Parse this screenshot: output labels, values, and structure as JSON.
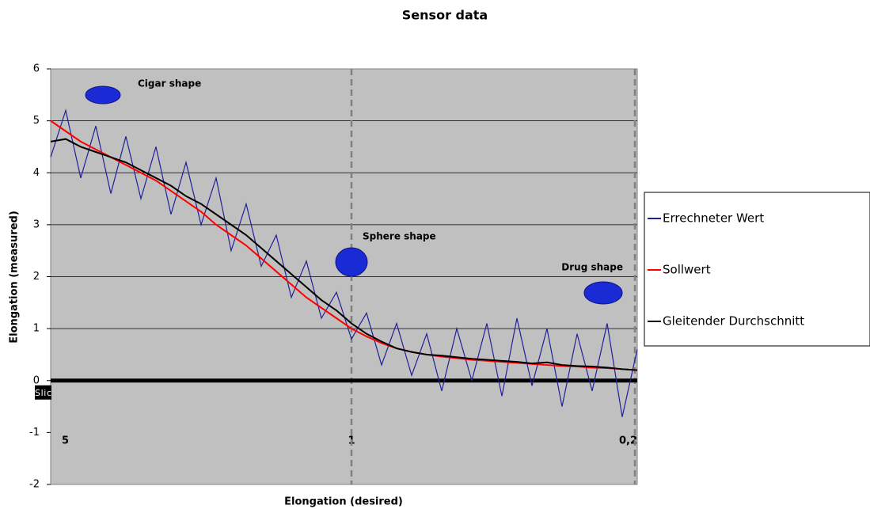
{
  "chart_data": {
    "type": "line",
    "title": "Sensor data",
    "xlabel": "Elongation (desired)",
    "ylabel": "Elongation (measured)",
    "categories": [
      "5",
      null,
      null,
      null,
      null,
      null,
      null,
      null,
      null,
      null,
      null,
      null,
      null,
      null,
      null,
      null,
      null,
      null,
      null,
      null,
      "1",
      null,
      null,
      null,
      null,
      null,
      null,
      null,
      null,
      null,
      null,
      null,
      null,
      null,
      null,
      null,
      null,
      null,
      null,
      "0,2"
    ],
    "ylim": [
      -2,
      6
    ],
    "yticks": [
      -2,
      -1,
      0,
      1,
      2,
      3,
      4,
      5,
      6
    ],
    "grid": true,
    "legend": "right",
    "series": [
      {
        "name": "Errechneter Wert",
        "color": "#1f1f9a",
        "values": [
          4.3,
          5.2,
          3.9,
          4.9,
          3.6,
          4.7,
          3.5,
          4.5,
          3.2,
          4.2,
          3.0,
          3.9,
          2.5,
          3.4,
          2.2,
          2.8,
          1.6,
          2.3,
          1.2,
          1.7,
          0.8,
          1.3,
          0.3,
          1.1,
          0.1,
          0.9,
          -0.2,
          1.0,
          0.0,
          1.1,
          -0.3,
          1.2,
          -0.1,
          1.0,
          -0.5,
          0.9,
          -0.2,
          1.1,
          -0.7,
          0.6
        ]
      },
      {
        "name": "Sollwert",
        "color": "#ff0000",
        "values": [
          5.0,
          4.8,
          4.6,
          4.45,
          4.3,
          4.15,
          4.0,
          3.85,
          3.65,
          3.45,
          3.25,
          3.0,
          2.8,
          2.6,
          2.35,
          2.1,
          1.85,
          1.6,
          1.4,
          1.2,
          1.0,
          0.85,
          0.72,
          0.62,
          0.55,
          0.5,
          0.46,
          0.43,
          0.4,
          0.38,
          0.36,
          0.34,
          0.32,
          0.3,
          0.28,
          0.27,
          0.25,
          0.24,
          0.22,
          0.2
        ]
      },
      {
        "name": "Gleitender Durchschnitt",
        "color": "#000000",
        "values": [
          4.6,
          4.65,
          4.5,
          4.4,
          4.3,
          4.2,
          4.05,
          3.9,
          3.75,
          3.55,
          3.4,
          3.2,
          3.0,
          2.8,
          2.55,
          2.3,
          2.05,
          1.8,
          1.55,
          1.35,
          1.1,
          0.9,
          0.75,
          0.62,
          0.55,
          0.5,
          0.48,
          0.45,
          0.42,
          0.4,
          0.38,
          0.36,
          0.33,
          0.35,
          0.3,
          0.28,
          0.27,
          0.25,
          0.22,
          0.2
        ]
      }
    ],
    "annotations": [
      "Cigar shape",
      "Sphere shape",
      "Drug shape",
      "Slic"
    ]
  }
}
